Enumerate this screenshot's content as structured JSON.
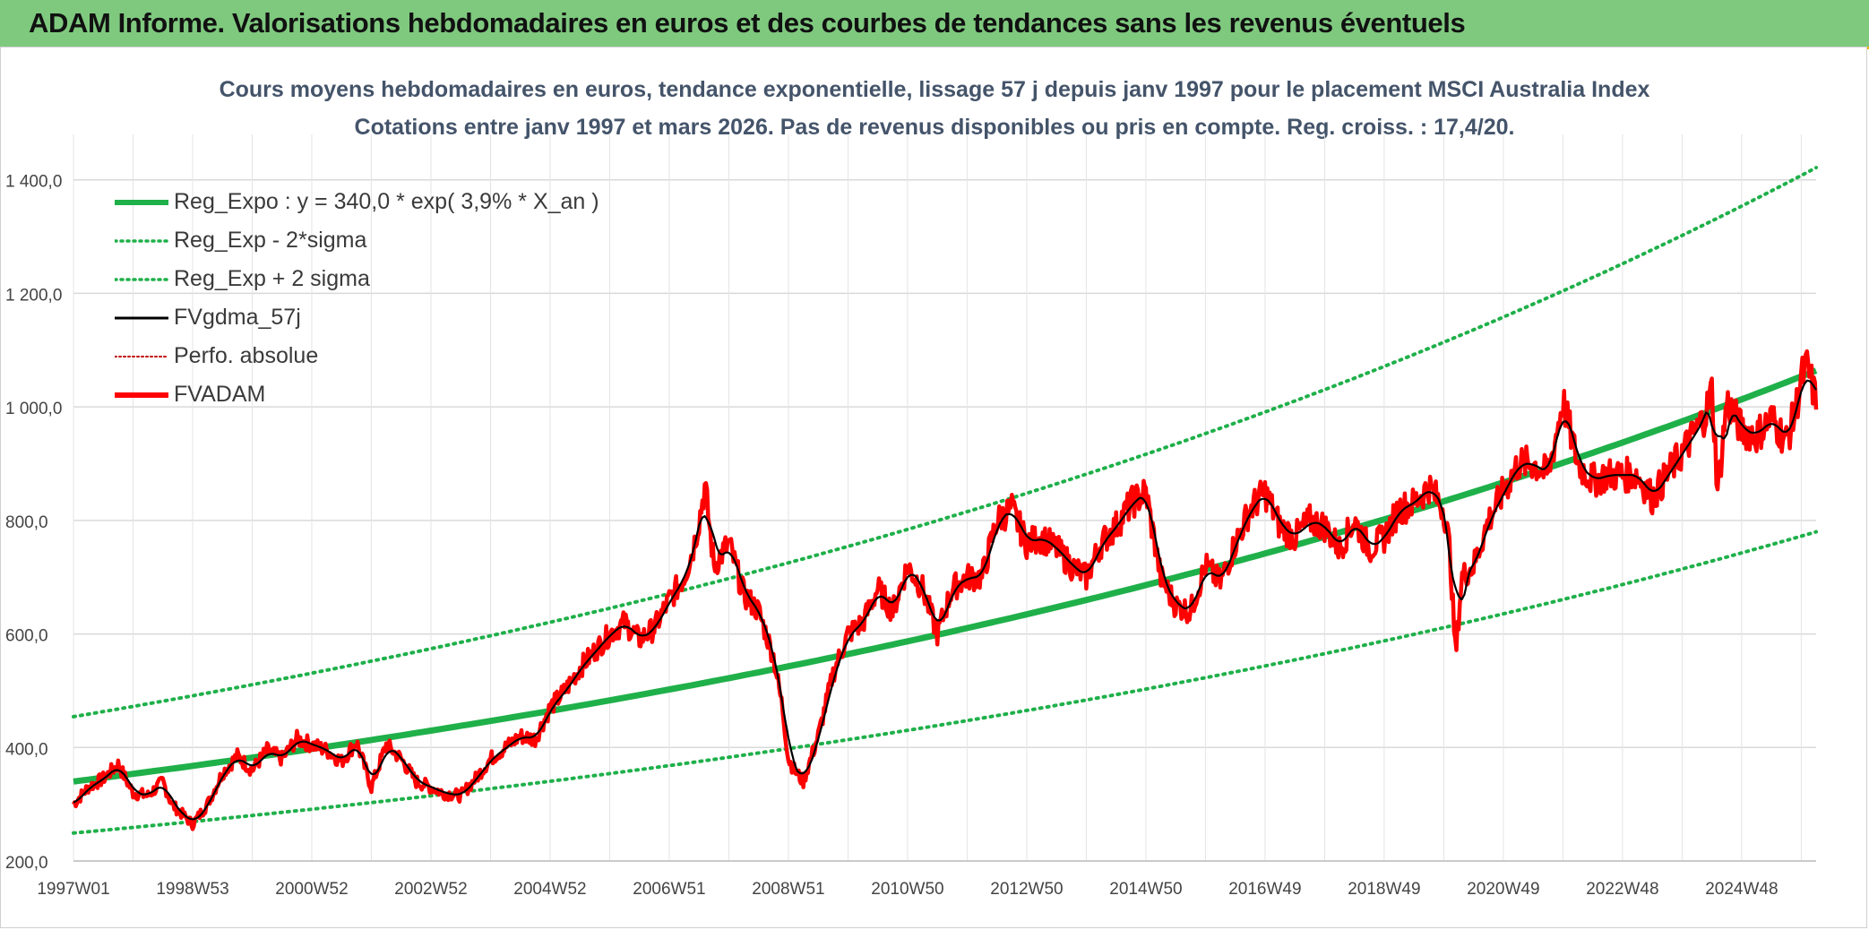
{
  "header": {
    "title": "ADAM Informe. Valorisations hebdomadaires en euros et des courbes de tendances sans les revenus éventuels"
  },
  "colors": {
    "header_bg": "#7fc97f",
    "green": "#1fb04a",
    "red": "#ff0000",
    "black": "#000000",
    "dark_red": "#c00000",
    "title_text": "#44546a"
  },
  "chart_data": {
    "type": "line",
    "title": "Cours moyens hebdomadaires en euros, tendance exponentielle, lissage 57 j depuis janv 1997 pour le placement MSCI Australia Index",
    "subtitle": "Cotations entre janv 1997 et mars 2026. Pas de revenus disponibles ou pris en compte. Reg. croiss. : 17,4/20.",
    "xlabel": "",
    "ylabel": "",
    "x_range": [
      1997.0,
      2026.25
    ],
    "ylim": [
      200,
      1480
    ],
    "y_ticks": [
      200,
      400,
      600,
      800,
      1000,
      1200,
      1400
    ],
    "y_tick_labels": [
      "200,0",
      "400,0",
      "600,0",
      "800,0",
      "1 000,0",
      "1 200,0",
      "1 400,0"
    ],
    "x_tick_labels": [
      "1997W01",
      "1998W53",
      "2000W52",
      "2002W52",
      "2004W52",
      "2006W51",
      "2008W51",
      "2010W50",
      "2012W50",
      "2014W50",
      "2016W49",
      "2018W49",
      "2020W49",
      "2022W48",
      "2024W48"
    ],
    "x_tick_positions": [
      1997.0,
      1999.0,
      2001.0,
      2003.0,
      2005.0,
      2007.0,
      2009.0,
      2011.0,
      2013.0,
      2015.0,
      2017.0,
      2019.0,
      2021.0,
      2023.0,
      2025.0
    ],
    "grid": true,
    "legend_position": "top-left",
    "legend": [
      {
        "key": "reg_expo",
        "label": "Reg_Expo : y = 340,0 * exp( 3,9% *  X_an )",
        "style": "solid-thick",
        "color": "#1fb04a"
      },
      {
        "key": "reg_minus",
        "label": "Reg_Exp - 2*sigma",
        "style": "dotted",
        "color": "#1fb04a"
      },
      {
        "key": "reg_plus",
        "label": "Reg_Exp + 2 sigma",
        "style": "dotted",
        "color": "#1fb04a"
      },
      {
        "key": "fvgdma",
        "label": "FVgdma_57j",
        "style": "solid-thin",
        "color": "#000000"
      },
      {
        "key": "perfo",
        "label": "Perfo. absolue",
        "style": "dotted-thin",
        "color": "#c00000"
      },
      {
        "key": "fvadam",
        "label": "FVADAM",
        "style": "solid-thick",
        "color": "#ff0000"
      }
    ],
    "regression": {
      "a": 340.0,
      "rate": 0.039,
      "sigma_factor": 0.3,
      "x0": 1997.0,
      "x1": 2026.25
    },
    "series": [
      {
        "name": "FVADAM",
        "x": [
          1997.0,
          1997.25,
          1997.5,
          1997.75,
          1998.0,
          1998.25,
          1998.5,
          1998.65,
          1998.8,
          1999.0,
          1999.25,
          1999.5,
          1999.75,
          2000.0,
          2000.25,
          2000.5,
          2000.75,
          2001.0,
          2001.25,
          2001.5,
          2001.75,
          2002.0,
          2002.25,
          2002.5,
          2002.75,
          2003.0,
          2003.2,
          2003.5,
          2003.75,
          2004.0,
          2004.25,
          2004.5,
          2004.75,
          2005.0,
          2005.25,
          2005.5,
          2005.75,
          2006.0,
          2006.25,
          2006.5,
          2006.75,
          2007.0,
          2007.25,
          2007.4,
          2007.5,
          2007.6,
          2007.75,
          2008.0,
          2008.25,
          2008.5,
          2008.75,
          2008.9,
          2009.0,
          2009.1,
          2009.25,
          2009.5,
          2009.75,
          2010.0,
          2010.25,
          2010.5,
          2010.75,
          2011.0,
          2011.25,
          2011.5,
          2011.75,
          2012.0,
          2012.25,
          2012.5,
          2012.75,
          2013.0,
          2013.25,
          2013.5,
          2013.75,
          2014.0,
          2014.25,
          2014.5,
          2014.75,
          2015.0,
          2015.25,
          2015.5,
          2015.75,
          2016.0,
          2016.25,
          2016.5,
          2016.75,
          2017.0,
          2017.25,
          2017.5,
          2017.75,
          2018.0,
          2018.25,
          2018.5,
          2018.75,
          2019.0,
          2019.25,
          2019.5,
          2019.75,
          2020.0,
          2020.1,
          2020.2,
          2020.3,
          2020.5,
          2020.75,
          2021.0,
          2021.25,
          2021.5,
          2021.75,
          2022.0,
          2022.25,
          2022.5,
          2022.75,
          2023.0,
          2023.25,
          2023.5,
          2023.75,
          2024.0,
          2024.25,
          2024.4,
          2024.5,
          2024.6,
          2024.75,
          2025.0,
          2025.25,
          2025.5,
          2025.75,
          2025.9,
          2026.0,
          2026.1,
          2026.25
        ],
        "y": [
          300,
          330,
          345,
          370,
          320,
          315,
          340,
          300,
          285,
          265,
          300,
          355,
          385,
          360,
          395,
          380,
          415,
          405,
          395,
          375,
          410,
          330,
          405,
          380,
          340,
          330,
          320,
          315,
          345,
          380,
          400,
          420,
          415,
          470,
          500,
          540,
          570,
          600,
          620,
          590,
          610,
          660,
          700,
          750,
          800,
          860,
          720,
          760,
          670,
          640,
          560,
          470,
          380,
          360,
          340,
          420,
          530,
          600,
          620,
          680,
          640,
          720,
          680,
          600,
          680,
          700,
          700,
          800,
          820,
          760,
          770,
          750,
          720,
          700,
          760,
          790,
          830,
          850,
          700,
          650,
          640,
          720,
          690,
          760,
          820,
          850,
          790,
          770,
          800,
          790,
          750,
          800,
          750,
          770,
          820,
          830,
          860,
          820,
          750,
          560,
          700,
          720,
          800,
          850,
          900,
          900,
          880,
          1010,
          900,
          870,
          880,
          880,
          880,
          840,
          880,
          920,
          960,
          990,
          1030,
          850,
          1010,
          960,
          950,
          980,
          940,
          990,
          1050,
          1070,
          1010
        ]
      }
    ]
  }
}
